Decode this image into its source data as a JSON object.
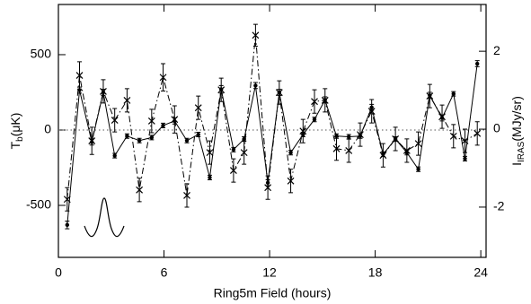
{
  "chart_data": {
    "type": "line",
    "xlabel": "Ring5m Field (hours)",
    "ylabel": [
      "T",
      "b",
      "(μK)"
    ],
    "y2label": [
      "I",
      "IRAS",
      "(MJy/sr)"
    ],
    "xlim": [
      0,
      24.3
    ],
    "xticks": [
      0,
      6,
      12,
      18,
      24
    ],
    "ylim": [
      -845,
      833
    ],
    "yticks": [
      -500,
      0,
      500
    ],
    "y2lim": [
      -3.29,
      3.2
    ],
    "y2ticks": [
      -2,
      0,
      2
    ],
    "reference_line": 0,
    "x": [
      0.5,
      1.2,
      1.9,
      2.55,
      3.2,
      3.9,
      4.6,
      5.3,
      5.95,
      6.6,
      7.3,
      7.95,
      8.6,
      9.25,
      9.95,
      10.55,
      11.2,
      11.9,
      12.55,
      13.2,
      13.9,
      14.55,
      15.15,
      15.8,
      16.5,
      17.15,
      17.8,
      18.45,
      19.15,
      19.8,
      20.45,
      21.1,
      21.8,
      22.45,
      23.1,
      23.8
    ],
    "series": [
      {
        "color": "#000000",
        "marker": "dot",
        "linestyle": "solid",
        "values": [
          -630,
          265,
          -80,
          250,
          -170,
          -40,
          -70,
          -50,
          30,
          60,
          -70,
          -30,
          -315,
          270,
          -130,
          -60,
          295,
          -350,
          250,
          -150,
          -30,
          70,
          200,
          -40,
          -45,
          -40,
          150,
          -160,
          -60,
          -150,
          -260,
          230,
          80,
          240,
          -190,
          440
        ],
        "errors": [
          25,
          20,
          20,
          20,
          15,
          15,
          15,
          15,
          15,
          20,
          15,
          15,
          15,
          25,
          15,
          15,
          20,
          20,
          20,
          15,
          15,
          15,
          20,
          15,
          15,
          15,
          20,
          15,
          15,
          15,
          15,
          20,
          20,
          15,
          15,
          20
        ]
      },
      {
        "color": "#000000",
        "marker": "x",
        "linestyle": "dashdot",
        "axis": "y2",
        "values": [
          -1.8,
          1.38,
          -0.3,
          0.97,
          0.23,
          0.74,
          -1.56,
          0.21,
          1.33,
          0.25,
          -1.7,
          0.55,
          -0.6,
          1.01,
          -1.06,
          -0.6,
          2.41,
          -1.5,
          0.94,
          -1.33,
          -0.05,
          0.71,
          0.74,
          -0.5,
          -0.55,
          -0.14,
          0.46,
          -0.67,
          -0.25,
          -0.55,
          -0.37,
          0.85,
          0.32,
          -0.18,
          -0.3,
          -0.11
        ],
        "errors": [
          0.3,
          0.35,
          0.35,
          0.3,
          0.3,
          0.3,
          0.3,
          0.3,
          0.35,
          0.35,
          0.3,
          0.3,
          0.3,
          0.3,
          0.3,
          0.3,
          0.28,
          0.3,
          0.3,
          0.3,
          0.3,
          0.3,
          0.3,
          0.3,
          0.3,
          0.3,
          0.3,
          0.3,
          0.3,
          0.3,
          0.3,
          0.3,
          0.3,
          0.3,
          0.3,
          0.3
        ]
      }
    ]
  }
}
